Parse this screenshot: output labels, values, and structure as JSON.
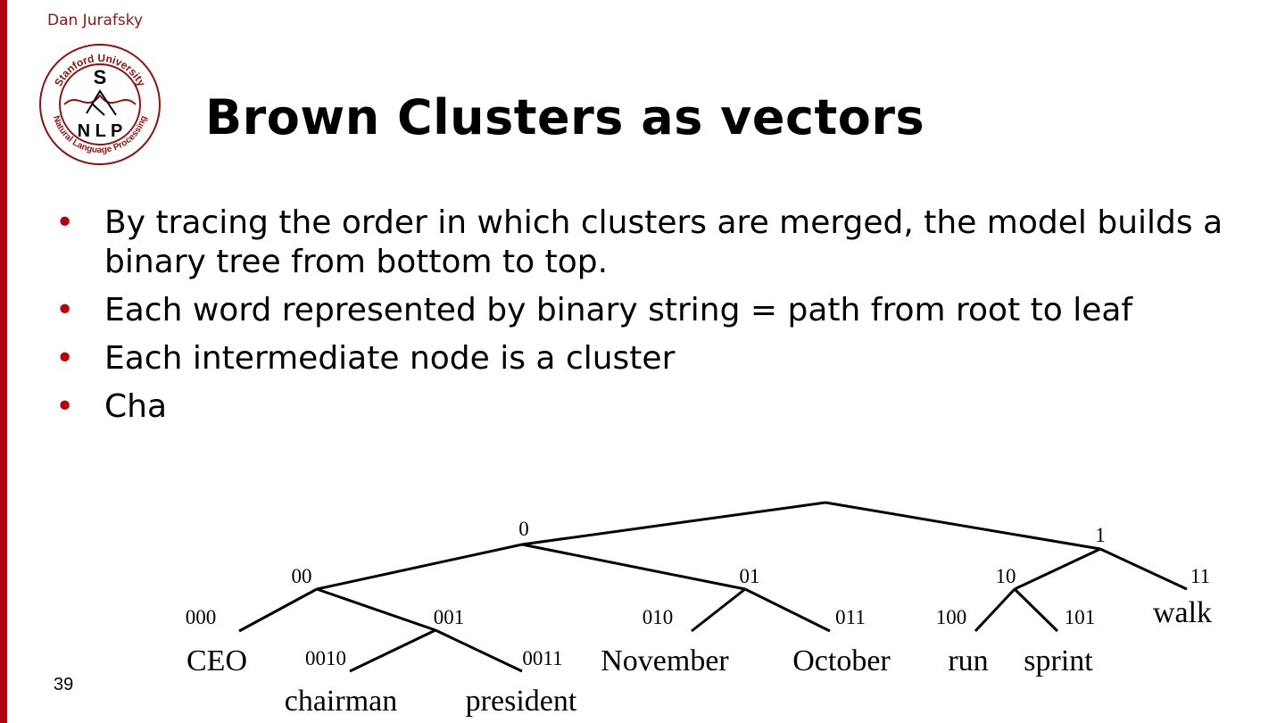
{
  "header": {
    "author": "Dan Jurafsky",
    "logo_text": [
      "Stanford University",
      "S",
      "NLP",
      "Natural Language Processing"
    ]
  },
  "slide": {
    "title": "Brown Clusters as vectors",
    "page_number": "39",
    "bullets": [
      "By tracing the order in which clusters are merged, the model builds a binary tree from bottom to top.",
      "Each word represented by binary string = path from root to leaf",
      "Each intermediate node is a cluster",
      "Cha"
    ]
  },
  "tree": {
    "node_labels": {
      "n0": "0",
      "n1": "1",
      "n00": "00",
      "n01": "01",
      "n10": "10",
      "n11": "11",
      "n000": "000",
      "n001": "001",
      "n010": "010",
      "n011": "011",
      "n100": "100",
      "n101": "101",
      "n0010": "0010",
      "n0011": "0011"
    },
    "words": {
      "CEO": "CEO",
      "chairman": "chairman",
      "president": "president",
      "November": "November",
      "October": "October",
      "run": "run",
      "sprint": "sprint",
      "walk": "walk"
    }
  }
}
